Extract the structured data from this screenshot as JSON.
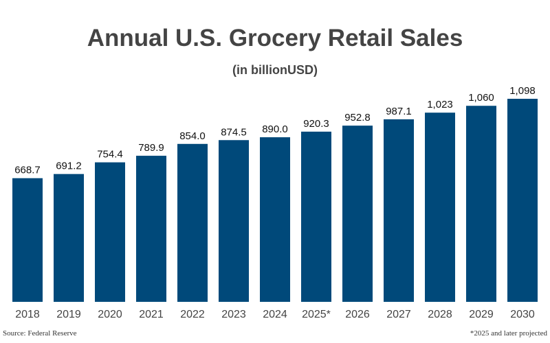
{
  "chart_data": {
    "type": "bar",
    "title": "Annual U.S. Grocery Retail Sales",
    "subtitle": "(in billionUSD)",
    "categories": [
      "2018",
      "2019",
      "2020",
      "2021",
      "2022",
      "2023",
      "2024",
      "2025*",
      "2026",
      "2027",
      "2028",
      "2029",
      "2030"
    ],
    "values": [
      668.7,
      691.2,
      754.4,
      789.9,
      854.0,
      874.5,
      890.0,
      920.3,
      952.8,
      987.1,
      1023,
      1060,
      1098
    ],
    "data_labels": [
      "668.7",
      "691.2",
      "754.4",
      "789.9",
      "854.0",
      "874.5",
      "890.0",
      "920.3",
      "952.8",
      "987.1",
      "1,023",
      "1,060",
      "1,098"
    ],
    "xlabel": "",
    "ylabel": "",
    "ylim": [
      0,
      1098
    ],
    "grid": false,
    "bar_color": "#00497A",
    "text_color": "#444444"
  },
  "footer": {
    "source": "Source: Federal Reserve",
    "note": "*2025 and later projected"
  }
}
